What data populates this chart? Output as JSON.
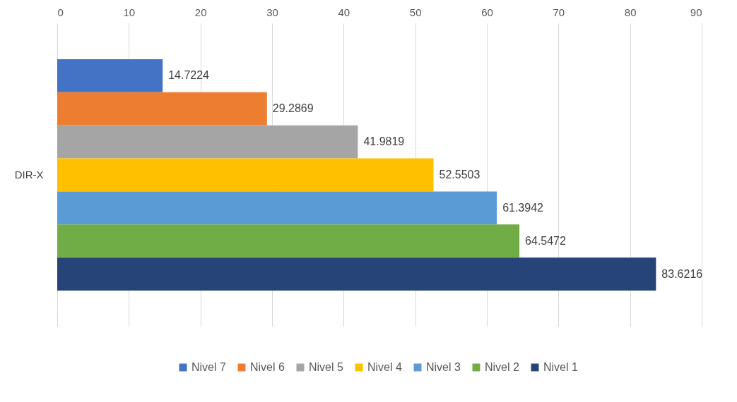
{
  "chart_data": {
    "type": "bar",
    "orientation": "horizontal",
    "categories": [
      "DIR-X"
    ],
    "series": [
      {
        "name": "Nivel 7",
        "color": "#4472c4",
        "values": [
          14.7224
        ]
      },
      {
        "name": "Nivel 6",
        "color": "#ed7d31",
        "values": [
          29.2869
        ]
      },
      {
        "name": "Nivel 5",
        "color": "#a5a5a5",
        "values": [
          41.9819
        ]
      },
      {
        "name": "Nivel 4",
        "color": "#ffc000",
        "values": [
          52.5503
        ]
      },
      {
        "name": "Nivel 3",
        "color": "#5b9bd5",
        "values": [
          61.3942
        ]
      },
      {
        "name": "Nivel 2",
        "color": "#70ad47",
        "values": [
          64.5472
        ]
      },
      {
        "name": "Nivel 1",
        "color": "#264478",
        "values": [
          83.6216
        ]
      }
    ],
    "xlim": [
      0,
      90
    ],
    "xticks": [
      0,
      10,
      20,
      30,
      40,
      50,
      60,
      70,
      80,
      90
    ],
    "grid": "x",
    "legend": "bottom",
    "data_labels": true
  }
}
